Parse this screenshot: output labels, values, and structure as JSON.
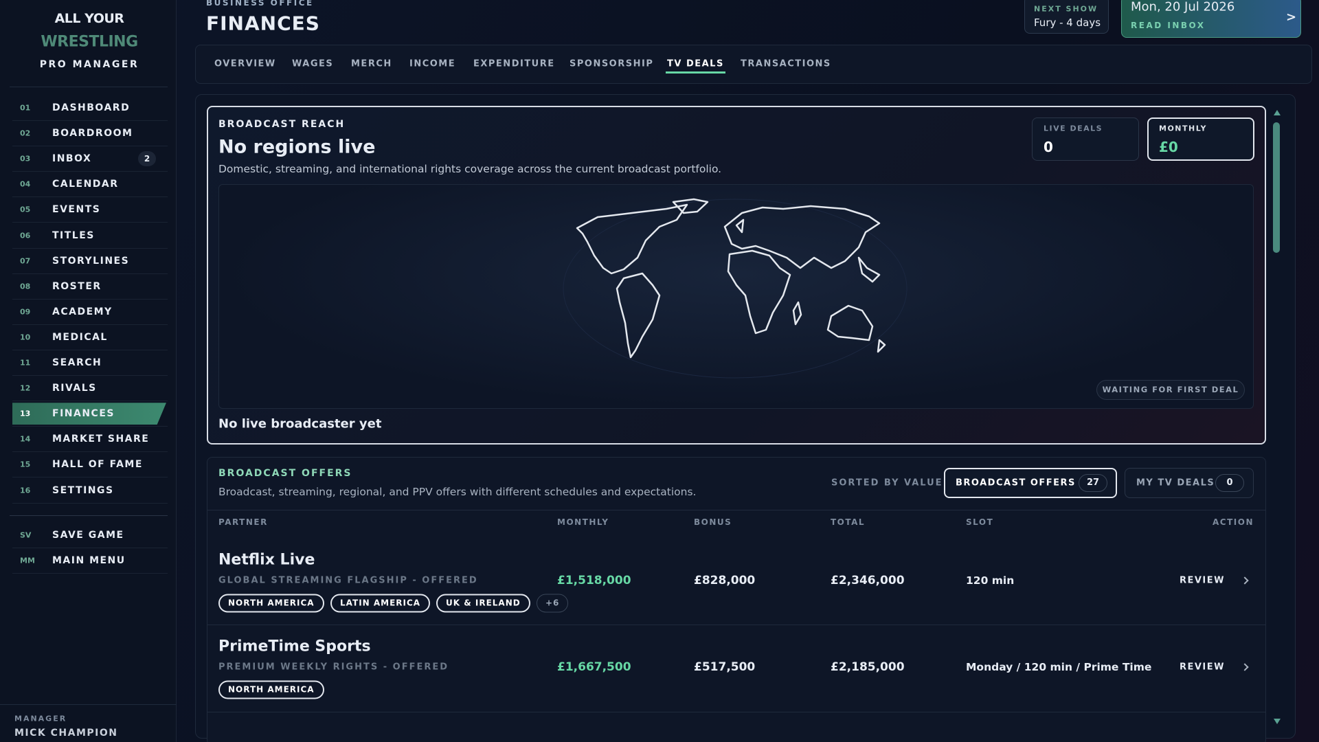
{
  "sidebar": {
    "logo": {
      "top": "ALL YOUR",
      "main": "WRESTLING",
      "sub": "PRO MANAGER"
    },
    "nav": [
      {
        "num": "01",
        "label": "DASHBOARD"
      },
      {
        "num": "02",
        "label": "BOARDROOM"
      },
      {
        "num": "03",
        "label": "INBOX",
        "badge": "2"
      },
      {
        "num": "04",
        "label": "CALENDAR"
      },
      {
        "num": "05",
        "label": "EVENTS"
      },
      {
        "num": "06",
        "label": "TITLES"
      },
      {
        "num": "07",
        "label": "STORYLINES"
      },
      {
        "num": "08",
        "label": "ROSTER"
      },
      {
        "num": "09",
        "label": "ACADEMY"
      },
      {
        "num": "10",
        "label": "MEDICAL"
      },
      {
        "num": "11",
        "label": "SEARCH"
      },
      {
        "num": "12",
        "label": "RIVALS"
      },
      {
        "num": "13",
        "label": "FINANCES",
        "active": true
      },
      {
        "num": "14",
        "label": "MARKET SHARE"
      },
      {
        "num": "15",
        "label": "HALL OF FAME"
      },
      {
        "num": "16",
        "label": "SETTINGS"
      }
    ],
    "system": [
      {
        "num": "SV",
        "label": "SAVE GAME"
      },
      {
        "num": "MM",
        "label": "MAIN MENU"
      }
    ],
    "manager": {
      "label": "MANAGER",
      "name": "MICK CHAMPION"
    }
  },
  "header": {
    "eyebrow": "BUSINESS OFFICE",
    "title": "FINANCES",
    "next_show": {
      "label": "NEXT SHOW",
      "value": "Fury - 4 days"
    },
    "date": {
      "value": "Mon, 20 Jul 2026",
      "action": "READ INBOX",
      "arrow": ">"
    }
  },
  "tabs": [
    {
      "label": "OVERVIEW"
    },
    {
      "label": "WAGES"
    },
    {
      "label": "MERCH"
    },
    {
      "label": "INCOME"
    },
    {
      "label": "EXPENDITURE"
    },
    {
      "label": "SPONSORSHIP"
    },
    {
      "label": "TV DEALS",
      "active": true
    },
    {
      "label": "TRANSACTIONS"
    }
  ],
  "reach": {
    "eyebrow": "BROADCAST REACH",
    "title": "No regions live",
    "description": "Domestic, streaming, and international rights coverage across the current broadcast portfolio.",
    "stats": [
      {
        "label": "LIVE DEALS",
        "value": "0"
      },
      {
        "label": "MONTHLY",
        "value": "£0",
        "active": true
      }
    ],
    "map_status": "WAITING FOR FIRST DEAL",
    "footer": "No live broadcaster yet"
  },
  "offers": {
    "eyebrow": "BROADCAST OFFERS",
    "description": "Broadcast, streaming, regional, and PPV offers with different schedules and expectations.",
    "sort": "SORTED BY VALUE",
    "toggles": [
      {
        "label": "BROADCAST OFFERS",
        "count": "27",
        "active": true
      },
      {
        "label": "MY TV DEALS",
        "count": "0"
      }
    ],
    "columns": [
      "PARTNER",
      "MONTHLY",
      "BONUS",
      "TOTAL",
      "SLOT",
      "ACTION"
    ],
    "rows": [
      {
        "partner": "Netflix Live",
        "subtitle": "GLOBAL STREAMING FLAGSHIP - OFFERED",
        "monthly": "£1,518,000",
        "bonus": "£828,000",
        "total": "£2,346,000",
        "slot": "120 min",
        "action": "REVIEW",
        "tags": [
          "NORTH AMERICA",
          "LATIN AMERICA",
          "UK & IRELAND",
          "+6"
        ]
      },
      {
        "partner": "PrimeTime Sports",
        "subtitle": "PREMIUM WEEKLY RIGHTS - OFFERED",
        "monthly": "£1,667,500",
        "bonus": "£517,500",
        "total": "£2,185,000",
        "slot": "Monday / 120 min / Prime Time",
        "action": "REVIEW",
        "tags": [
          "NORTH AMERICA"
        ]
      }
    ]
  }
}
